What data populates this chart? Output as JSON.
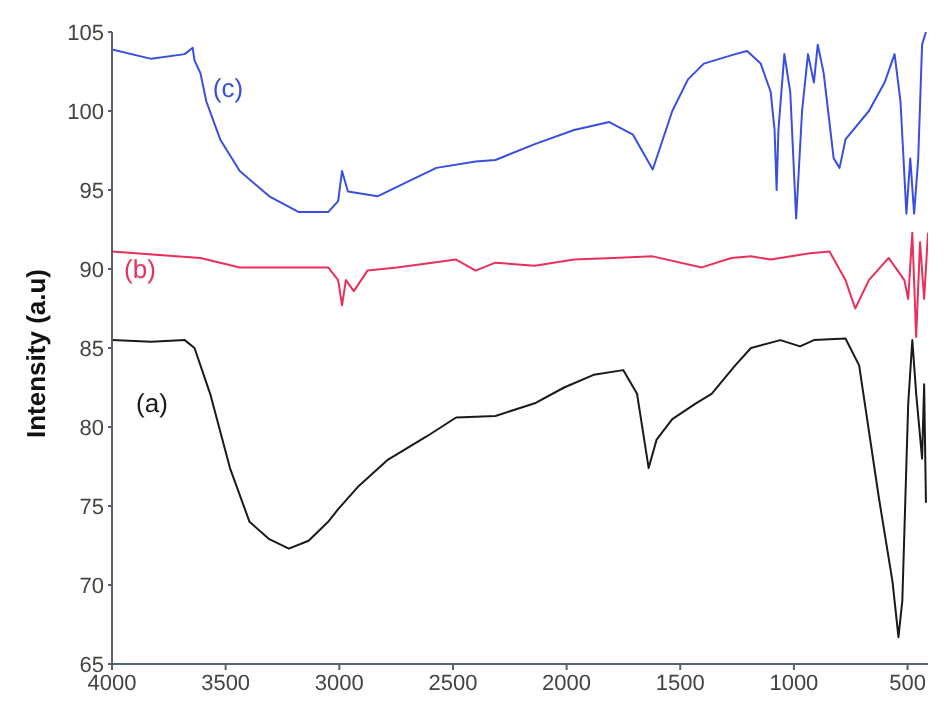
{
  "chart_data": {
    "type": "line",
    "ylabel": "Intensity (a.u)",
    "xlim": [
      4000,
      410
    ],
    "xticks": [
      4000,
      3500,
      3000,
      2500,
      2000,
      1500,
      1000,
      500
    ],
    "ylim": [
      65,
      105
    ],
    "yticks": [
      65,
      70,
      75,
      80,
      85,
      90,
      95,
      100,
      105
    ],
    "grid": false,
    "legend": false,
    "marker": "none",
    "line_style": "solid",
    "series": [
      {
        "name": "(a)",
        "color": "#1a1a1a",
        "x": [
          4000,
          3827,
          3680,
          3637,
          3568,
          3481,
          3395,
          3308,
          3222,
          3135,
          3049,
          3005,
          2919,
          2789,
          2616,
          2486,
          2313,
          2140,
          2011,
          1881,
          1751,
          1690,
          1639,
          1604,
          1535,
          1431,
          1362,
          1258,
          1189,
          1059,
          973,
          912,
          773,
          713,
          627,
          566,
          540,
          523,
          497,
          479,
          462,
          436,
          427,
          419
        ],
        "values": [
          85.5,
          85.4,
          85.5,
          85.0,
          82.1,
          77.4,
          74.0,
          72.9,
          72.3,
          72.8,
          74.0,
          74.8,
          76.2,
          77.9,
          79.4,
          80.6,
          80.7,
          81.5,
          82.5,
          83.3,
          83.6,
          82.1,
          77.4,
          79.2,
          80.5,
          81.5,
          82.1,
          83.9,
          85.0,
          85.5,
          85.1,
          85.5,
          85.6,
          83.9,
          75.6,
          70.2,
          66.7,
          69.0,
          81.5,
          85.5,
          82.1,
          78.0,
          82.7,
          75.2
        ]
      },
      {
        "name": "(b)",
        "color": "#e8305a",
        "x": [
          4000,
          3611,
          3438,
          3049,
          3005,
          2988,
          2971,
          2936,
          2876,
          2746,
          2486,
          2400,
          2313,
          2140,
          1967,
          1794,
          1621,
          1405,
          1275,
          1189,
          1102,
          929,
          843,
          773,
          730,
          670,
          583,
          514,
          497,
          479,
          462,
          445,
          427,
          410
        ],
        "values": [
          91.1,
          90.7,
          90.1,
          90.1,
          89.3,
          87.7,
          89.3,
          88.6,
          89.9,
          90.1,
          90.6,
          89.9,
          90.4,
          90.2,
          90.6,
          90.7,
          90.8,
          90.1,
          90.7,
          90.8,
          90.6,
          91.0,
          91.1,
          89.3,
          87.5,
          89.3,
          90.7,
          89.3,
          88.1,
          92.3,
          85.7,
          91.7,
          88.1,
          92.3
        ]
      },
      {
        "name": "(c)",
        "color": "#3a4fe0",
        "x": [
          4000,
          3827,
          3680,
          3645,
          3637,
          3611,
          3585,
          3524,
          3438,
          3308,
          3178,
          3049,
          3005,
          2988,
          2962,
          2832,
          2703,
          2573,
          2400,
          2313,
          2140,
          1967,
          1812,
          1708,
          1621,
          1535,
          1466,
          1396,
          1258,
          1206,
          1146,
          1102,
          1085,
          1076,
          1068,
          1042,
          1016,
          990,
          964,
          938,
          912,
          895,
          869,
          825,
          799,
          773,
          670,
          601,
          557,
          531,
          505,
          488,
          471,
          453,
          436,
          419
        ],
        "values": [
          103.9,
          103.3,
          103.6,
          104.0,
          103.2,
          102.4,
          100.6,
          98.2,
          96.2,
          94.6,
          93.6,
          93.6,
          94.3,
          96.2,
          94.9,
          94.6,
          95.5,
          96.4,
          96.8,
          96.9,
          97.9,
          98.8,
          99.3,
          98.5,
          96.3,
          100.0,
          102.0,
          103.0,
          103.6,
          103.8,
          103.0,
          101.2,
          98.8,
          95.0,
          98.8,
          103.6,
          101.2,
          93.2,
          100.0,
          103.6,
          101.8,
          104.2,
          102.4,
          97.0,
          96.4,
          98.2,
          100.0,
          101.8,
          103.6,
          100.6,
          93.5,
          97.0,
          93.5,
          97.0,
          104.2,
          105.0
        ]
      }
    ]
  }
}
